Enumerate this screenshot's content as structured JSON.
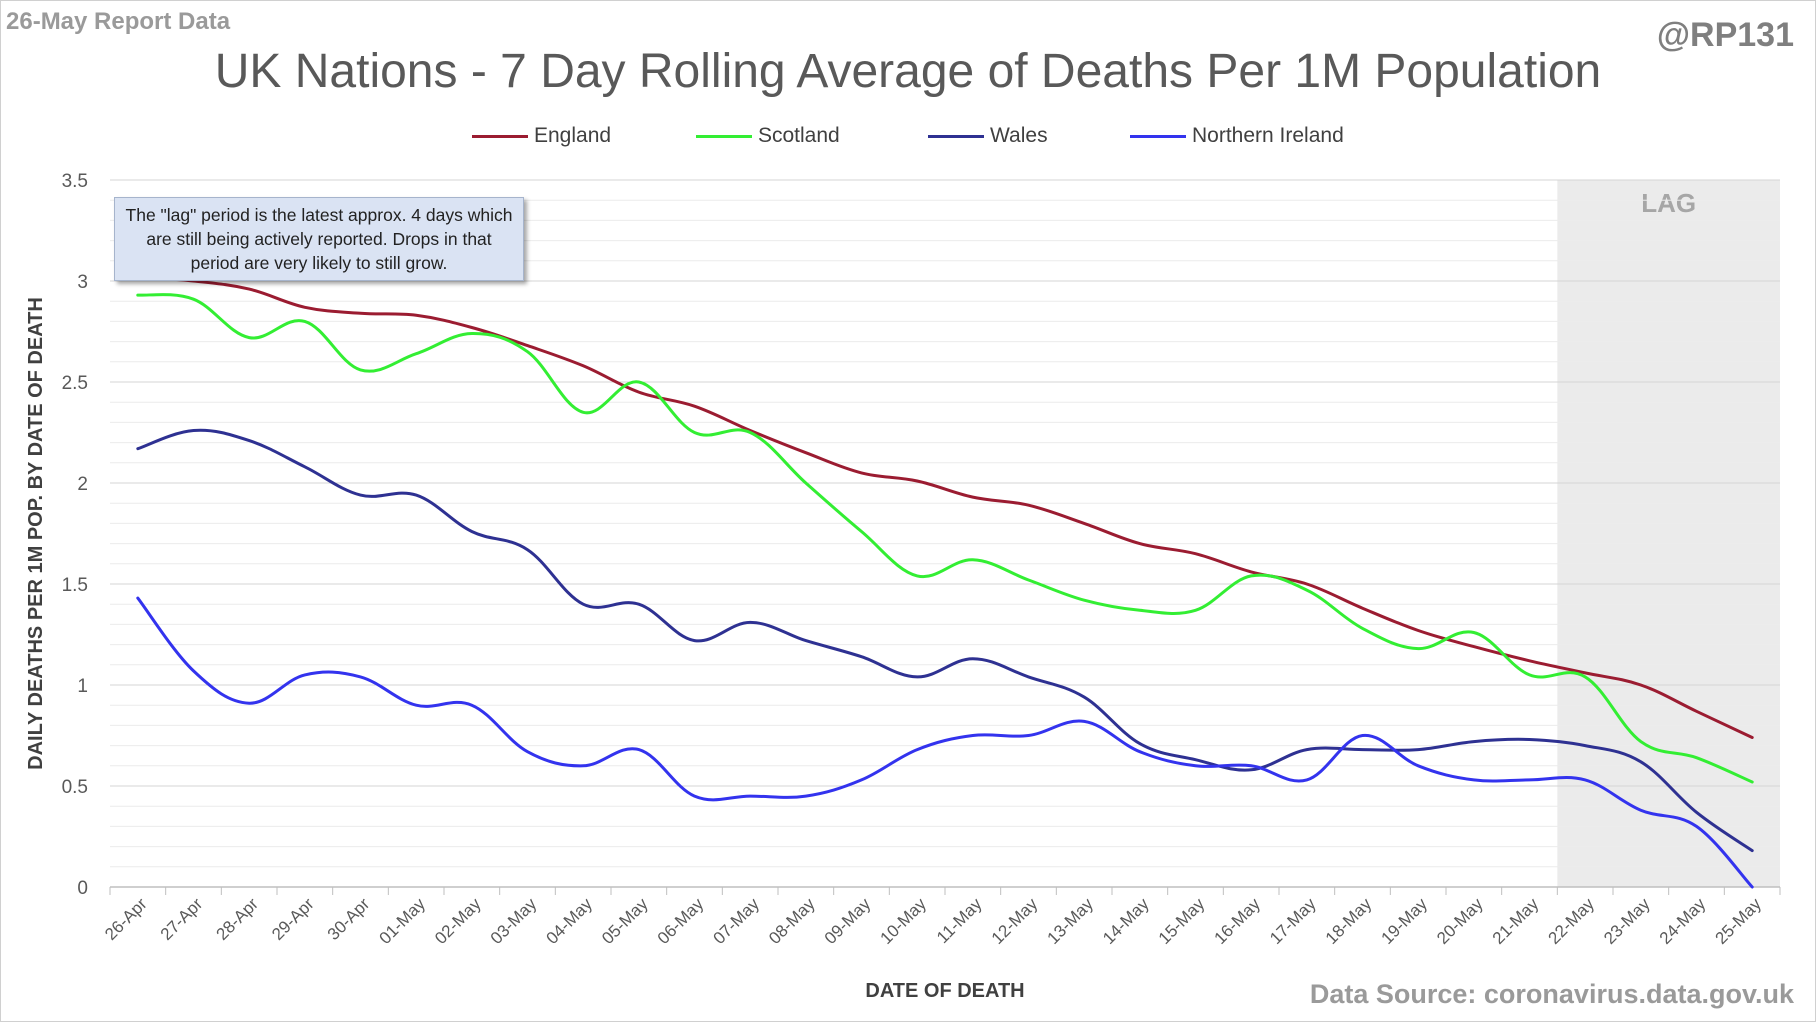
{
  "header": {
    "report_label": "26-May Report Data",
    "handle": "@RP131",
    "source": "Data Source: coronavirus.data.gov.uk"
  },
  "note": "The \"lag\" period is the latest approx. 4 days which are still being actively reported.  Drops in that period are very likely to still grow.",
  "chart_data": {
    "type": "line",
    "title": "UK Nations - 7 Day Rolling Average of Deaths Per 1M Population",
    "xlabel": "DATE OF DEATH",
    "ylabel": "DAILY DEATHS PER 1M POP. BY DATE OF DEATH",
    "ylim": [
      0,
      3.5
    ],
    "yticks": [
      0,
      0.5,
      1,
      1.5,
      2,
      2.5,
      3,
      3.5
    ],
    "ytick_labels": [
      "0",
      "0.5",
      "1",
      "1.5",
      "2",
      "2.5",
      "3",
      "3.5"
    ],
    "grid": true,
    "legend_position": "top",
    "lag_region": {
      "label": "LAG",
      "start": "22-May",
      "end": "25-May"
    },
    "categories": [
      "26-Apr",
      "27-Apr",
      "28-Apr",
      "29-Apr",
      "30-Apr",
      "01-May",
      "02-May",
      "03-May",
      "04-May",
      "05-May",
      "06-May",
      "07-May",
      "08-May",
      "09-May",
      "10-May",
      "11-May",
      "12-May",
      "13-May",
      "14-May",
      "15-May",
      "16-May",
      "17-May",
      "18-May",
      "19-May",
      "20-May",
      "21-May",
      "22-May",
      "23-May",
      "24-May",
      "25-May"
    ],
    "series": [
      {
        "name": "England",
        "color": "#9b1c31",
        "values": [
          3.02,
          3.0,
          2.96,
          2.87,
          2.84,
          2.83,
          2.77,
          2.68,
          2.58,
          2.45,
          2.38,
          2.26,
          2.15,
          2.05,
          2.01,
          1.93,
          1.89,
          1.8,
          1.7,
          1.65,
          1.56,
          1.5,
          1.38,
          1.27,
          1.19,
          1.12,
          1.06,
          1.0,
          0.87,
          0.74
        ]
      },
      {
        "name": "Scotland",
        "color": "#33ee33",
        "values": [
          2.93,
          2.91,
          2.72,
          2.8,
          2.56,
          2.64,
          2.74,
          2.65,
          2.35,
          2.5,
          2.25,
          2.25,
          2.0,
          1.76,
          1.54,
          1.62,
          1.52,
          1.42,
          1.37,
          1.37,
          1.54,
          1.47,
          1.28,
          1.18,
          1.26,
          1.05,
          1.04,
          0.72,
          0.64,
          0.52
        ]
      },
      {
        "name": "Wales",
        "color": "#2e3192",
        "values": [
          2.17,
          2.26,
          2.21,
          2.08,
          1.94,
          1.94,
          1.76,
          1.67,
          1.4,
          1.4,
          1.22,
          1.31,
          1.22,
          1.14,
          1.04,
          1.13,
          1.04,
          0.94,
          0.71,
          0.63,
          0.58,
          0.68,
          0.68,
          0.68,
          0.72,
          0.73,
          0.7,
          0.62,
          0.37,
          0.18
        ]
      },
      {
        "name": "Northern Ireland",
        "color": "#3333ee",
        "values": [
          1.43,
          1.07,
          0.91,
          1.05,
          1.04,
          0.9,
          0.9,
          0.67,
          0.6,
          0.68,
          0.45,
          0.45,
          0.45,
          0.53,
          0.68,
          0.75,
          0.75,
          0.82,
          0.67,
          0.6,
          0.6,
          0.53,
          0.75,
          0.6,
          0.53,
          0.53,
          0.53,
          0.38,
          0.3,
          0.0
        ]
      }
    ]
  }
}
